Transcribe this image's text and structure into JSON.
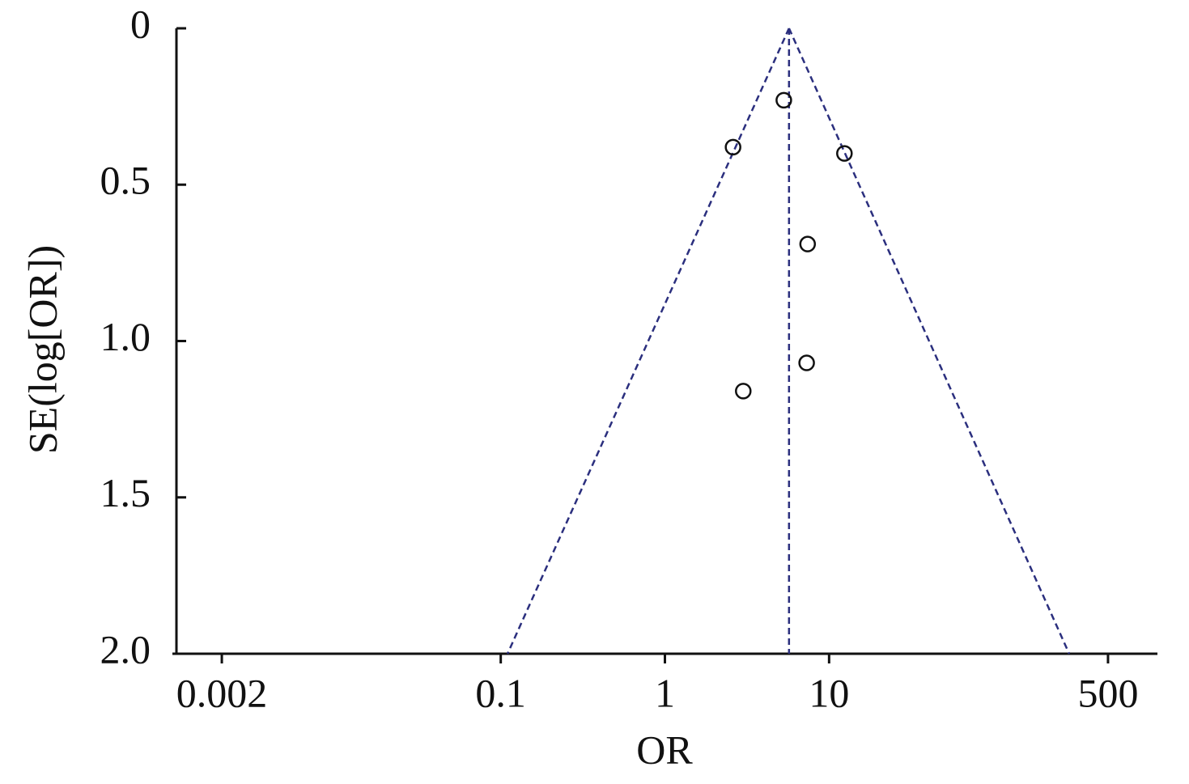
{
  "chart_data": {
    "type": "scatter",
    "x_label": "OR",
    "y_label": "SE(log[OR])",
    "x_log": true,
    "y_inverted": true,
    "xlim": [
      0.001,
      1000
    ],
    "ylim": [
      0,
      2
    ],
    "xticks": [
      0.002,
      0.1,
      1,
      10,
      500
    ],
    "yticks": [
      0,
      0.5,
      {
        "value": 1,
        "label": "1.0"
      },
      1.5,
      {
        "value": 2,
        "label": "2.0"
      }
    ],
    "point_color": "#111111",
    "line_color": "#2b2f7e",
    "series": [
      {
        "x": [
          5.3,
          2.6,
          12.4,
          7.4,
          7.3,
          3.0
        ],
        "values": [
          0.23,
          0.38,
          0.4,
          0.69,
          1.07,
          1.16
        ]
      }
    ],
    "reference_lines": [
      {
        "x": [
          5.7,
          5.7
        ],
        "values": [
          0,
          2
        ]
      },
      {
        "x": [
          5.7,
          0.11
        ],
        "values": [
          0,
          2
        ]
      },
      {
        "x": [
          5.7,
          290
        ],
        "values": [
          0,
          2
        ]
      }
    ]
  }
}
